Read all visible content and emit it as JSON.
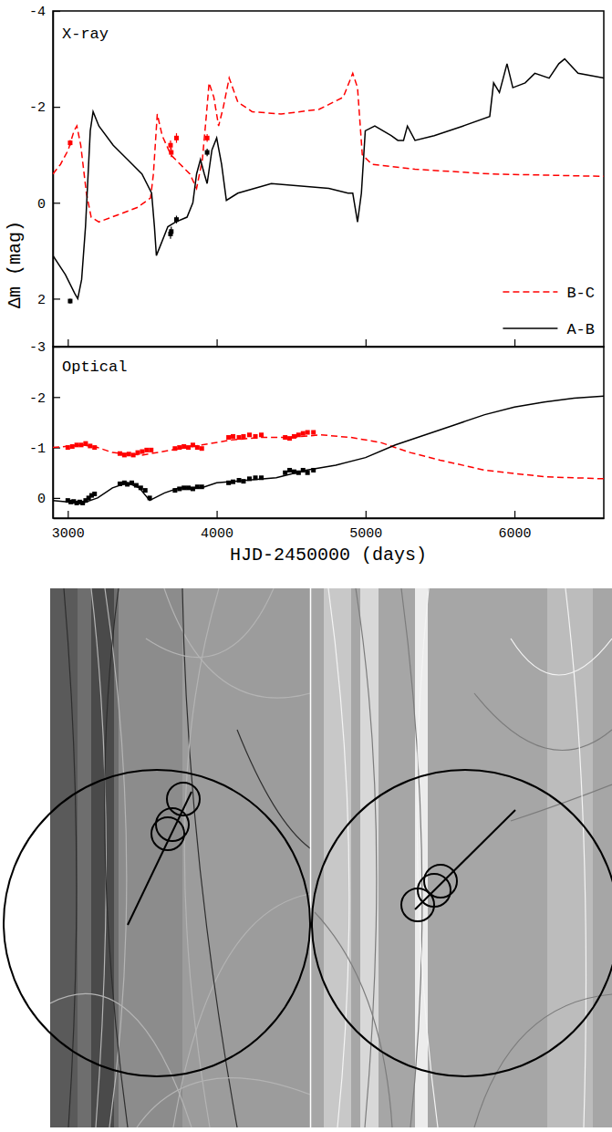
{
  "chart_data": [
    {
      "type": "line",
      "title": "X-ray",
      "ylabel": "Δm (mag)",
      "xlim": [
        2900,
        6600
      ],
      "ylim": [
        -4,
        3
      ],
      "xticks": [
        3000,
        4000,
        5000,
        6000
      ],
      "yticks": [
        -4,
        -2,
        0,
        2
      ],
      "tick_labels": "y",
      "legend": "lower right",
      "series": [
        {
          "name": "B-C",
          "type": "line",
          "color": "#ff0000",
          "line_style": "dashed",
          "x": [
            2900,
            2951,
            3003,
            3042,
            3061,
            3087,
            3125,
            3157,
            3209,
            3338,
            3466,
            3556,
            3575,
            3601,
            3634,
            3692,
            3756,
            3820,
            3865,
            3904,
            3930,
            3949,
            3981,
            4013,
            4045,
            4084,
            4142,
            4238,
            4432,
            4689,
            4850,
            4914,
            4946,
            4978,
            5043,
            5332,
            5847,
            6600
          ],
          "values": [
            -0.6,
            -0.8,
            -1.1,
            -1.5,
            -1.6,
            -1.2,
            -0.2,
            0.3,
            0.4,
            0.25,
            0.1,
            -0.1,
            -0.6,
            -1.85,
            -1.4,
            -1.0,
            -0.8,
            -0.6,
            -0.3,
            -0.9,
            -1.8,
            -2.5,
            -2.2,
            -1.6,
            -2.0,
            -2.6,
            -2.1,
            -1.9,
            -1.85,
            -1.95,
            -2.2,
            -2.7,
            -2.4,
            -1.0,
            -0.8,
            -0.7,
            -0.6,
            -0.55
          ]
        },
        {
          "name": "A-B",
          "type": "line",
          "color": "#000000",
          "line_style": "solid",
          "x": [
            2900,
            2984,
            3048,
            3067,
            3093,
            3119,
            3151,
            3170,
            3209,
            3305,
            3402,
            3498,
            3563,
            3582,
            3595,
            3621,
            3672,
            3724,
            3801,
            3840,
            3865,
            3891,
            3917,
            3936,
            3968,
            4000,
            4033,
            4065,
            4142,
            4367,
            4753,
            4882,
            4914,
            4946,
            4972,
            4998,
            5062,
            5172,
            5217,
            5255,
            5281,
            5332,
            5461,
            5654,
            5834,
            5860,
            5899,
            5950,
            5989,
            6072,
            6137,
            6233,
            6298,
            6337,
            6427,
            6600
          ],
          "values": [
            1.1,
            1.5,
            1.9,
            2.0,
            1.6,
            0.5,
            -1.5,
            -1.9,
            -1.6,
            -1.2,
            -0.9,
            -0.6,
            -0.2,
            0.5,
            1.1,
            0.9,
            0.5,
            0.4,
            0.3,
            0.0,
            -0.6,
            -0.9,
            -0.6,
            -0.4,
            -1.1,
            -1.35,
            -0.8,
            -0.05,
            -0.2,
            -0.4,
            -0.3,
            -0.2,
            -0.2,
            0.4,
            -0.2,
            -1.5,
            -1.6,
            -1.4,
            -1.3,
            -1.3,
            -1.6,
            -1.3,
            -1.4,
            -1.6,
            -1.8,
            -2.5,
            -2.3,
            -2.9,
            -2.4,
            -2.5,
            -2.7,
            -2.6,
            -2.9,
            -3.0,
            -2.7,
            -2.6
          ]
        },
        {
          "type": "scatter",
          "color": "#ff0000",
          "marker": "square",
          "x": [
            3016,
            3690,
            3695,
            3730,
            3936
          ],
          "values": [
            -1.25,
            -1.2,
            -1.05,
            -1.35,
            -1.35
          ],
          "errors": [
            0.06,
            0.1,
            0.1,
            0.1,
            0.08
          ]
        },
        {
          "type": "scatter",
          "color": "#000000",
          "marker": "square",
          "x": [
            3016,
            3690,
            3695,
            3730,
            3936
          ],
          "values": [
            2.05,
            0.65,
            0.6,
            0.35,
            -1.05
          ],
          "errors": [
            0.05,
            0.1,
            0.1,
            0.08,
            0.08
          ]
        }
      ]
    },
    {
      "type": "line",
      "title": "Optical",
      "xlabel": "HJD-2450000 (days)",
      "xlim": [
        2900,
        6600
      ],
      "ylim": [
        -3,
        0.4
      ],
      "xticks": [
        3000,
        4000,
        5000,
        6000
      ],
      "yticks": [
        -3,
        -2,
        -1,
        0
      ],
      "series": [
        {
          "type": "line",
          "color": "#ff0000",
          "line_style": "dashed",
          "x": [
            2900,
            3100,
            3200,
            3300,
            3500,
            3700,
            3900,
            4100,
            4300,
            4500,
            4700,
            4900,
            5100,
            5300,
            5500,
            5800,
            6200,
            6600
          ],
          "values": [
            -1.0,
            -1.05,
            -1.0,
            -0.9,
            -0.85,
            -0.95,
            -1.05,
            -1.15,
            -1.2,
            -1.2,
            -1.25,
            -1.2,
            -1.1,
            -0.9,
            -0.75,
            -0.55,
            -0.42,
            -0.38
          ]
        },
        {
          "type": "line",
          "color": "#000000",
          "line_style": "solid",
          "x": [
            2900,
            3000,
            3100,
            3200,
            3300,
            3400,
            3480,
            3550,
            3650,
            3750,
            3900,
            4000,
            4200,
            4400,
            4600,
            4800,
            5000,
            5200,
            5400,
            5600,
            5800,
            6000,
            6200,
            6400,
            6600
          ],
          "values": [
            0.05,
            0.08,
            0.1,
            0.0,
            -0.2,
            -0.3,
            -0.2,
            0.05,
            -0.1,
            -0.2,
            -0.2,
            -0.3,
            -0.35,
            -0.4,
            -0.55,
            -0.65,
            -0.8,
            -1.05,
            -1.25,
            -1.45,
            -1.65,
            -1.8,
            -1.9,
            -1.98,
            -2.02
          ]
        },
        {
          "type": "scatter",
          "color": "#ff0000",
          "marker": "square",
          "x": [
            3000,
            3030,
            3060,
            3090,
            3120,
            3150,
            3180,
            3350,
            3380,
            3410,
            3440,
            3470,
            3500,
            3530,
            3560,
            3720,
            3750,
            3780,
            3810,
            3840,
            3870,
            3900,
            4080,
            4110,
            4150,
            4180,
            4220,
            4260,
            4300,
            4460,
            4490,
            4520,
            4550,
            4580,
            4610,
            4650
          ],
          "values": [
            -1.0,
            -1.02,
            -1.05,
            -1.05,
            -1.08,
            -1.03,
            -1.0,
            -0.88,
            -0.85,
            -0.87,
            -0.85,
            -0.9,
            -0.92,
            -0.95,
            -0.95,
            -0.98,
            -1.0,
            -1.02,
            -1.0,
            -1.05,
            -1.0,
            -0.98,
            -1.2,
            -1.22,
            -1.2,
            -1.22,
            -1.25,
            -1.22,
            -1.25,
            -1.2,
            -1.18,
            -1.22,
            -1.25,
            -1.28,
            -1.3,
            -1.3
          ]
        },
        {
          "type": "scatter",
          "color": "#000000",
          "marker": "square",
          "x": [
            3000,
            3020,
            3040,
            3060,
            3080,
            3100,
            3120,
            3140,
            3160,
            3180,
            3350,
            3380,
            3400,
            3430,
            3460,
            3490,
            3520,
            3550,
            3720,
            3750,
            3780,
            3810,
            3840,
            3870,
            3900,
            4080,
            4110,
            4150,
            4180,
            4220,
            4260,
            4300,
            4460,
            4490,
            4520,
            4550,
            4580,
            4610,
            4650
          ],
          "values": [
            0.05,
            0.08,
            0.07,
            0.1,
            0.08,
            0.1,
            0.05,
            0.0,
            -0.05,
            -0.08,
            -0.28,
            -0.3,
            -0.27,
            -0.3,
            -0.25,
            -0.2,
            -0.15,
            0.0,
            -0.15,
            -0.18,
            -0.2,
            -0.2,
            -0.18,
            -0.22,
            -0.22,
            -0.3,
            -0.32,
            -0.35,
            -0.33,
            -0.38,
            -0.4,
            -0.4,
            -0.5,
            -0.55,
            -0.52,
            -0.5,
            -0.55,
            -0.5,
            -0.55
          ]
        }
      ]
    }
  ]
}
